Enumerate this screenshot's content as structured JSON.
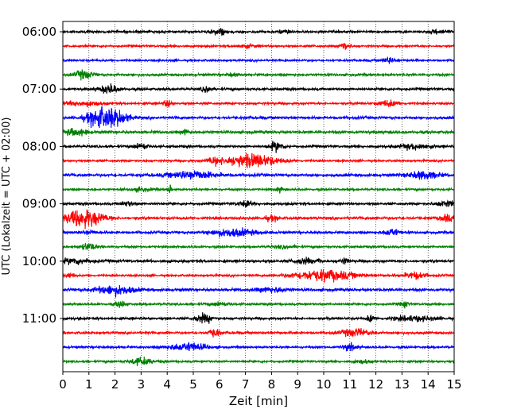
{
  "chart_data": {
    "type": "line",
    "subtype": "helicorder",
    "title": "",
    "xlabel": "Zeit  [min]",
    "ylabel": "UTC (Lokalzeit = UTC + 02:00)",
    "xlim": [
      0,
      15
    ],
    "x_ticks": [
      0,
      1,
      2,
      3,
      4,
      5,
      6,
      7,
      8,
      9,
      10,
      11,
      12,
      13,
      14,
      15
    ],
    "grid": "vertical dotted lines at each minute",
    "y_ticks": [
      {
        "label": "06:00",
        "trace": 0
      },
      {
        "label": "07:00",
        "trace": 4
      },
      {
        "label": "08:00",
        "trace": 8
      },
      {
        "label": "09:00",
        "trace": 12
      },
      {
        "label": "10:00",
        "trace": 16
      },
      {
        "label": "11:00",
        "trace": 20
      }
    ],
    "trace_minutes": 15,
    "trace_colors": [
      "#000000",
      "#ff0000",
      "#0000ff",
      "#008000"
    ],
    "traces": [
      {
        "start": "06:00",
        "color": "#000000",
        "base_amp": 0.25,
        "bursts": [
          [
            6.0,
            0.7,
            0.2
          ],
          [
            8.5,
            0.4,
            0.15
          ],
          [
            14.4,
            0.4,
            0.25
          ]
        ]
      },
      {
        "start": "06:15",
        "color": "#ff0000",
        "base_amp": 0.22,
        "bursts": [
          [
            10.8,
            0.9,
            0.15
          ],
          [
            7.0,
            0.3,
            0.3
          ]
        ]
      },
      {
        "start": "06:30",
        "color": "#0000ff",
        "base_amp": 0.22,
        "bursts": [
          [
            12.5,
            0.6,
            0.2
          ]
        ]
      },
      {
        "start": "06:45",
        "color": "#008000",
        "base_amp": 0.25,
        "bursts": [
          [
            0.8,
            0.9,
            0.25
          ],
          [
            6.5,
            0.3,
            0.2
          ]
        ]
      },
      {
        "start": "07:00",
        "color": "#000000",
        "base_amp": 0.25,
        "bursts": [
          [
            1.8,
            1.0,
            0.25
          ],
          [
            5.5,
            0.9,
            0.1
          ]
        ]
      },
      {
        "start": "07:15",
        "color": "#ff0000",
        "base_amp": 0.25,
        "bursts": [
          [
            0.8,
            0.5,
            0.5
          ],
          [
            4.0,
            0.7,
            0.1
          ],
          [
            12.5,
            0.6,
            0.3
          ]
        ]
      },
      {
        "start": "07:30",
        "color": "#0000ff",
        "base_amp": 0.28,
        "bursts": [
          [
            1.5,
            2.2,
            0.4
          ],
          [
            2.2,
            1.0,
            0.3
          ]
        ]
      },
      {
        "start": "07:45",
        "color": "#008000",
        "base_amp": 0.3,
        "bursts": [
          [
            0.5,
            0.7,
            0.3
          ],
          [
            4.7,
            0.6,
            0.1
          ]
        ]
      },
      {
        "start": "08:00",
        "color": "#000000",
        "base_amp": 0.25,
        "bursts": [
          [
            3.0,
            0.6,
            0.2
          ],
          [
            8.2,
            1.0,
            0.2
          ],
          [
            13.5,
            0.6,
            0.4
          ]
        ]
      },
      {
        "start": "08:15",
        "color": "#ff0000",
        "base_amp": 0.22,
        "bursts": [
          [
            7.2,
            1.5,
            0.7
          ],
          [
            5.8,
            0.6,
            0.2
          ]
        ]
      },
      {
        "start": "08:30",
        "color": "#0000ff",
        "base_amp": 0.3,
        "bursts": [
          [
            5.0,
            0.9,
            0.6
          ],
          [
            13.8,
            0.8,
            0.4
          ]
        ]
      },
      {
        "start": "08:45",
        "color": "#008000",
        "base_amp": 0.22,
        "bursts": [
          [
            4.1,
            0.9,
            0.05
          ],
          [
            3.0,
            0.4,
            0.25
          ],
          [
            8.3,
            0.5,
            0.1
          ]
        ]
      },
      {
        "start": "09:00",
        "color": "#000000",
        "base_amp": 0.25,
        "bursts": [
          [
            2.5,
            0.5,
            0.2
          ],
          [
            7.0,
            0.6,
            0.2
          ],
          [
            14.7,
            0.6,
            0.3
          ]
        ]
      },
      {
        "start": "09:15",
        "color": "#ff0000",
        "base_amp": 0.28,
        "bursts": [
          [
            0.8,
            2.0,
            0.5
          ],
          [
            8.0,
            0.5,
            0.2
          ],
          [
            14.7,
            0.7,
            0.2
          ]
        ]
      },
      {
        "start": "09:30",
        "color": "#0000ff",
        "base_amp": 0.25,
        "bursts": [
          [
            1.0,
            0.5,
            0.2
          ],
          [
            6.5,
            0.8,
            0.6
          ],
          [
            12.6,
            0.8,
            0.2
          ]
        ]
      },
      {
        "start": "09:45",
        "color": "#008000",
        "base_amp": 0.22,
        "bursts": [
          [
            1.0,
            0.8,
            0.2
          ],
          [
            8.5,
            0.3,
            0.3
          ]
        ]
      },
      {
        "start": "10:00",
        "color": "#000000",
        "base_amp": 0.28,
        "bursts": [
          [
            0.5,
            0.6,
            0.4
          ],
          [
            9.2,
            0.6,
            0.25
          ],
          [
            9.8,
            1.0,
            0.05
          ],
          [
            10.8,
            0.6,
            0.1
          ]
        ]
      },
      {
        "start": "10:15",
        "color": "#ff0000",
        "base_amp": 0.22,
        "bursts": [
          [
            0.3,
            0.6,
            0.1
          ],
          [
            10.0,
            1.2,
            0.8
          ],
          [
            13.5,
            0.7,
            0.3
          ]
        ]
      },
      {
        "start": "10:30",
        "color": "#0000ff",
        "base_amp": 0.3,
        "bursts": [
          [
            2.0,
            1.0,
            0.5
          ],
          [
            8.0,
            0.5,
            0.4
          ]
        ]
      },
      {
        "start": "10:45",
        "color": "#008000",
        "base_amp": 0.22,
        "bursts": [
          [
            2.2,
            0.7,
            0.15
          ],
          [
            6.0,
            0.4,
            0.3
          ],
          [
            13.1,
            0.7,
            0.1
          ]
        ]
      },
      {
        "start": "11:00",
        "color": "#000000",
        "base_amp": 0.25,
        "bursts": [
          [
            5.4,
            0.9,
            0.25
          ],
          [
            11.8,
            0.8,
            0.1
          ],
          [
            13.5,
            0.5,
            0.6
          ]
        ]
      },
      {
        "start": "11:15",
        "color": "#ff0000",
        "base_amp": 0.25,
        "bursts": [
          [
            5.8,
            0.9,
            0.15
          ],
          [
            11.2,
            0.8,
            0.4
          ]
        ]
      },
      {
        "start": "11:30",
        "color": "#0000ff",
        "base_amp": 0.22,
        "bursts": [
          [
            4.8,
            0.9,
            0.5
          ],
          [
            11.0,
            0.7,
            0.2
          ]
        ]
      },
      {
        "start": "11:45",
        "color": "#008000",
        "base_amp": 0.22,
        "bursts": [
          [
            3.0,
            0.8,
            0.3
          ],
          [
            11.5,
            0.4,
            0.2
          ]
        ]
      }
    ]
  }
}
